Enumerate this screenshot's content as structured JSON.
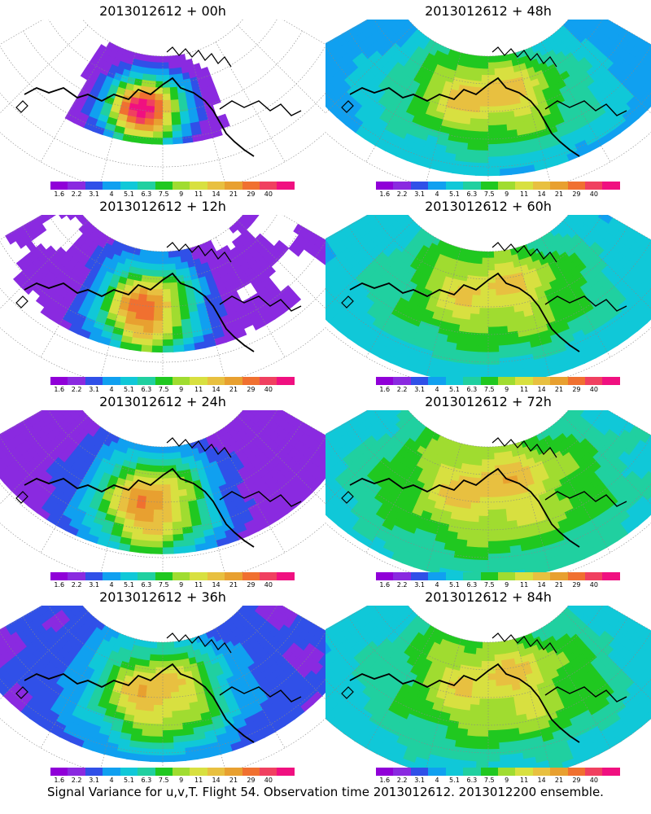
{
  "panels": [
    {
      "title": "2013012612  +  00h",
      "lead_hours": 0
    },
    {
      "title": "2013012612  +  48h",
      "lead_hours": 48
    },
    {
      "title": "2013012612  +  12h",
      "lead_hours": 12
    },
    {
      "title": "2013012612  +  60h",
      "lead_hours": 60
    },
    {
      "title": "2013012612  +  24h",
      "lead_hours": 24
    },
    {
      "title": "2013012612  +  72h",
      "lead_hours": 72
    },
    {
      "title": "2013012612  +  36h",
      "lead_hours": 36
    },
    {
      "title": "2013012612  +  84h",
      "lead_hours": 84
    }
  ],
  "colorbar": {
    "labels": [
      "1.6",
      "2.2",
      "3.1",
      "4",
      "5.1",
      "6.3",
      "7.5",
      "9",
      "11",
      "14",
      "21",
      "29",
      "40"
    ],
    "colors": [
      "#9000d8",
      "#8a2ae0",
      "#3050e8",
      "#10a0f0",
      "#10c8d8",
      "#20d0a0",
      "#20c820",
      "#a0dc30",
      "#d8e040",
      "#e8c040",
      "#e8a030",
      "#f07030",
      "#f04060",
      "#f01080"
    ]
  },
  "footer": "Signal Variance for u,v,T. Flight 54. Observation time 2013012612. 2013012200 ensemble."
}
